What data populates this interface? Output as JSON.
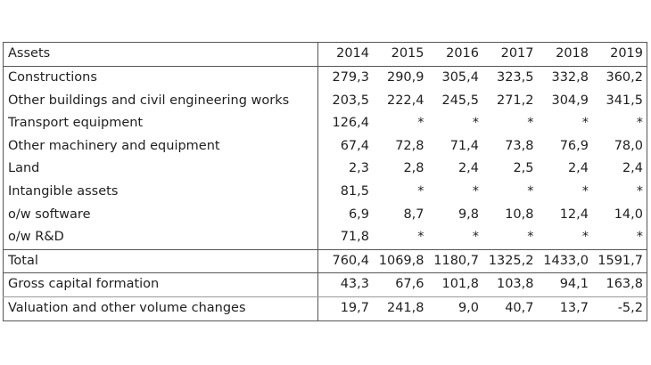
{
  "table": {
    "header": {
      "label": "Assets",
      "years": [
        "2014",
        "2015",
        "2016",
        "2017",
        "2018",
        "2019"
      ]
    },
    "rows": [
      {
        "label": "Constructions",
        "values": [
          "279,3",
          "290,9",
          "305,4",
          "323,5",
          "332,8",
          "360,2"
        ]
      },
      {
        "label": "Other buildings and civil engineering works",
        "values": [
          "203,5",
          "222,4",
          "245,5",
          "271,2",
          "304,9",
          "341,5"
        ]
      },
      {
        "label": "Transport equipment",
        "values": [
          "126,4",
          "*",
          "*",
          "*",
          "*",
          "*"
        ]
      },
      {
        "label": "Other machinery and equipment",
        "values": [
          "67,4",
          "72,8",
          "71,4",
          "73,8",
          "76,9",
          "78,0"
        ]
      },
      {
        "label": "Land",
        "values": [
          "2,3",
          "2,8",
          "2,4",
          "2,5",
          "2,4",
          "2,4"
        ]
      },
      {
        "label": "Intangible assets",
        "values": [
          "81,5",
          "*",
          "*",
          "*",
          "*",
          "*"
        ]
      },
      {
        "label": "o/w software",
        "values": [
          "6,9",
          "8,7",
          "9,8",
          "10,8",
          "12,4",
          "14,0"
        ]
      },
      {
        "label": "o/w R&D",
        "values": [
          "71,8",
          "*",
          "*",
          "*",
          "*",
          "*"
        ]
      }
    ],
    "total": {
      "label": "Total",
      "values": [
        "760,4",
        "1069,8",
        "1180,7",
        "1325,2",
        "1433,0",
        "1591,7"
      ]
    },
    "extra_rows": [
      {
        "label": "Gross capital formation",
        "values": [
          "43,3",
          "67,6",
          "101,8",
          "103,8",
          "94,1",
          "163,8"
        ]
      },
      {
        "label": "Valuation and other volume changes",
        "values": [
          "19,7",
          "241,8",
          "9,0",
          "40,7",
          "13,7",
          "-5,2"
        ]
      }
    ]
  }
}
